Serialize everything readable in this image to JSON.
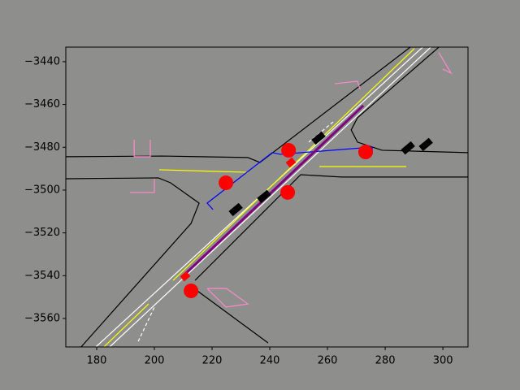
{
  "chart_data": {
    "type": "map",
    "xlim": [
      169.3,
      308.7
    ],
    "ylim": [
      -3573.3,
      -3433.2
    ],
    "xticks": [
      180,
      200,
      220,
      240,
      260,
      280,
      300
    ],
    "yticks": [
      {
        "value": -3440,
        "label": "−3440"
      },
      {
        "value": -3460,
        "label": "−3460"
      },
      {
        "value": -3480,
        "label": "−3480"
      },
      {
        "value": -3500,
        "label": "−3500"
      },
      {
        "value": -3520,
        "label": "−3520"
      },
      {
        "value": -3540,
        "label": "−3540"
      },
      {
        "value": -3560,
        "label": "−3560"
      }
    ],
    "series": [
      {
        "color": "#000000",
        "x": [
          169.3,
          202.8,
          232.4,
          236.6,
          288.7
        ],
        "y": [
          -3484.4,
          -3484.1,
          -3484.8,
          -3487.1,
          -3433.2
        ]
      },
      {
        "color": "#000000",
        "x": [
          174.6,
          212.7,
          215.5,
          205.6,
          201.4,
          169.3
        ],
        "y": [
          -3573.3,
          -3515.6,
          -3506.1,
          -3496.6,
          -3494.3,
          -3494.7
        ]
      },
      {
        "color": "#000000",
        "x": [
          298.6,
          270.4,
          268.2,
          270.4,
          278.9,
          308.7
        ],
        "y": [
          -3433.2,
          -3466.2,
          -3471.9,
          -3477.6,
          -3481.4,
          -3482.5
        ]
      },
      {
        "color": "#000000",
        "x": [
          308.7,
          264.8,
          250.7,
          243.7,
          214.1
        ],
        "y": [
          -3493.9,
          -3493.9,
          -3492.8,
          -3502.3,
          -3542.2
        ]
      },
      {
        "color": "#000000",
        "x": [
          214.1,
          214.9,
          239.4
        ],
        "y": [
          -3546.0,
          -3547.1,
          -3571.4
        ]
      },
      {
        "color": "#ffffff",
        "x": [
          179.7,
          293.0
        ],
        "y": [
          -3573.3,
          -3433.2
        ]
      },
      {
        "color": "#ffffff",
        "x": [
          184.5,
          295.8
        ],
        "y": [
          -3573.3,
          -3433.2
        ]
      },
      {
        "color": "#ffffff",
        "dashed": true,
        "x": [
          194.4,
          200.0
        ],
        "y": [
          -3570.7,
          -3554.7
        ]
      },
      {
        "color": "#ffffff",
        "dashed": true,
        "x": [
          253.5,
          262.0
        ],
        "y": [
          -3477.6,
          -3468.1
        ]
      },
      {
        "color": "#ffff00",
        "x": [
          182.5,
          198.0
        ],
        "y": [
          -3573.3,
          -3553.2
        ]
      },
      {
        "color": "#ffff00",
        "x": [
          206.5,
          290.1
        ],
        "y": [
          -3542.2,
          -3433.9
        ]
      },
      {
        "color": "#ffff00",
        "x": [
          201.7,
          232.4
        ],
        "y": [
          -3490.5,
          -3491.7
        ]
      },
      {
        "color": "#ffff00",
        "x": [
          257.2,
          287.3
        ],
        "y": [
          -3489.0,
          -3489.0
        ]
      },
      {
        "color": "#0000ff",
        "x": [
          220.3,
          218.3,
          240.8,
          243.7,
          275.5,
          275.5
        ],
        "y": [
          -3509.1,
          -3506.1,
          -3482.5,
          -3483.3,
          -3479.9,
          -3483.3
        ]
      },
      {
        "color": "#800080",
        "width": 3,
        "x": [
          211.3,
          272.4
        ],
        "y": [
          -3538.4,
          -3460.5
        ]
      },
      {
        "color": "#ff88cc",
        "x": [
          193.0,
          193.0,
          198.6,
          198.6
        ],
        "y": [
          -3476.5,
          -3484.4,
          -3484.4,
          -3476.5
        ]
      },
      {
        "color": "#ff88cc",
        "x": [
          191.5,
          200.0,
          200.0
        ],
        "y": [
          -3501.1,
          -3501.1,
          -3494.7
        ]
      },
      {
        "color": "#ff88cc",
        "x": [
          262.5,
          270.4,
          271.3
        ],
        "y": [
          -3450.3,
          -3449.1,
          -3452.9
        ]
      },
      {
        "color": "#ff88cc",
        "x": [
          298.6,
          302.8,
          299.9
        ],
        "y": [
          -3435.8,
          -3445.3,
          -3443.4
        ]
      },
      {
        "color": "#ff88cc",
        "x": [
          218.3,
          224.8,
          232.4,
          225.0,
          218.3
        ],
        "y": [
          -3546.0,
          -3554.7,
          -3553.2,
          -3546.0,
          -3546.0
        ]
      }
    ],
    "points": [
      {
        "shape": "circle",
        "color": "#ff0000",
        "x": [
          246.5,
          224.8,
          246.2,
          273.2,
          212.7
        ],
        "y": [
          -3481.4,
          -3496.6,
          -3501.1,
          -3482.2,
          -3547.1
        ]
      },
      {
        "shape": "diamond",
        "color": "#ff0000",
        "x": [
          247.3,
          210.7
        ],
        "y": [
          -3487.1,
          -3540.3
        ]
      },
      {
        "shape": "rect",
        "color": "#000000",
        "x": [
          256.9,
          228.2,
          238.0,
          294.1,
          287.9
        ],
        "y": [
          -3475.7,
          -3509.1,
          -3503.0,
          -3478.7,
          -3480.3
        ]
      }
    ]
  }
}
